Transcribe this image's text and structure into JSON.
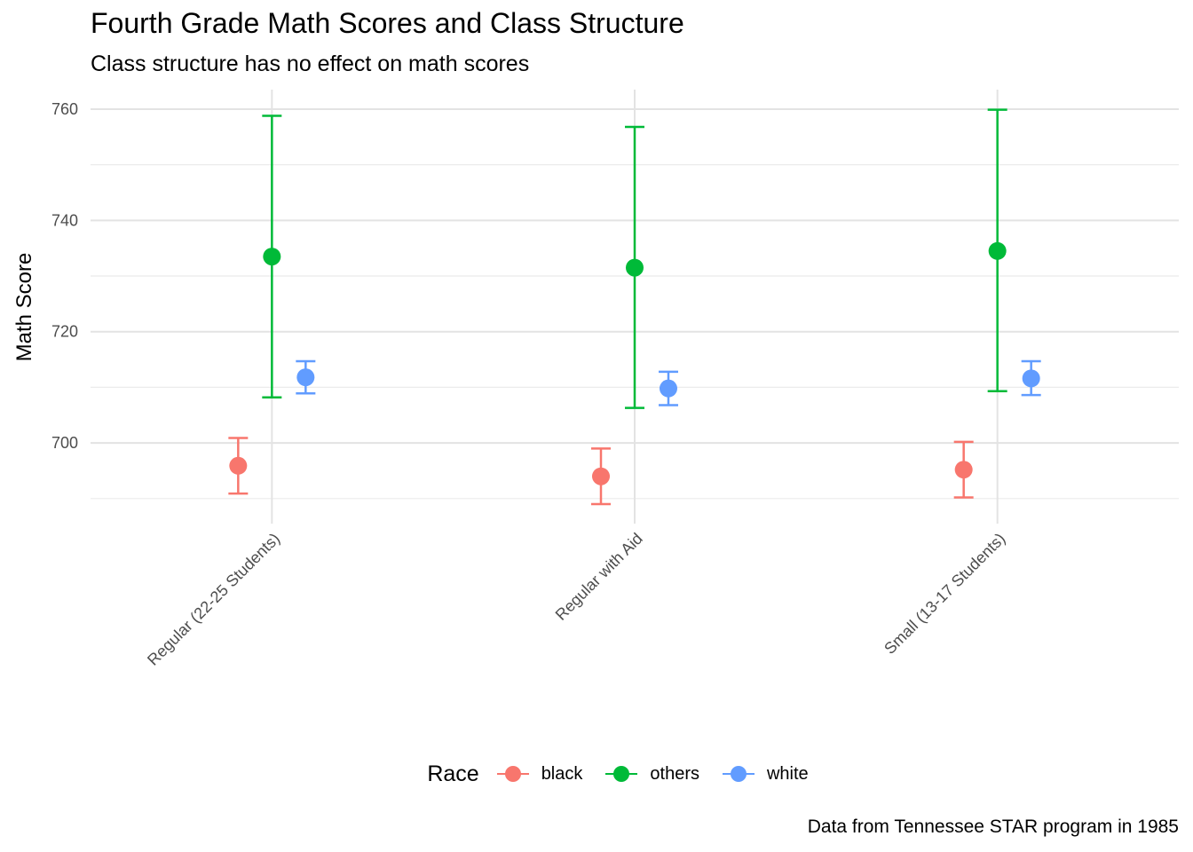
{
  "chart_data": {
    "type": "scatter",
    "title": "Fourth Grade Math Scores and Class Structure",
    "subtitle": "Class structure has no effect on math scores",
    "caption": "Data from Tennessee STAR program in 1985",
    "ylabel": "Math Score",
    "xlabel": "",
    "categories": [
      "Regular (22-25 Students)",
      "Regular with Aid",
      "Small (13-17 Students)"
    ],
    "ylim": [
      685.5,
      763.5
    ],
    "yticks": [
      700,
      720,
      740,
      760
    ],
    "grid": true,
    "legend": {
      "title": "Race",
      "placement": "bottom"
    },
    "series": [
      {
        "name": "black",
        "color": "#F8766D",
        "values": [
          695.9,
          694.0,
          695.2
        ],
        "lower": [
          690.9,
          689.0,
          690.2
        ],
        "upper": [
          700.9,
          699.0,
          700.2
        ]
      },
      {
        "name": "others",
        "color": "#00BA38",
        "values": [
          733.5,
          731.5,
          734.5
        ],
        "lower": [
          708.2,
          706.3,
          709.3
        ],
        "upper": [
          758.8,
          756.8,
          759.9
        ]
      },
      {
        "name": "white",
        "color": "#619CFF",
        "values": [
          711.8,
          709.8,
          711.6
        ],
        "lower": [
          708.9,
          706.8,
          708.6
        ],
        "upper": [
          714.7,
          712.8,
          714.7
        ]
      }
    ]
  }
}
